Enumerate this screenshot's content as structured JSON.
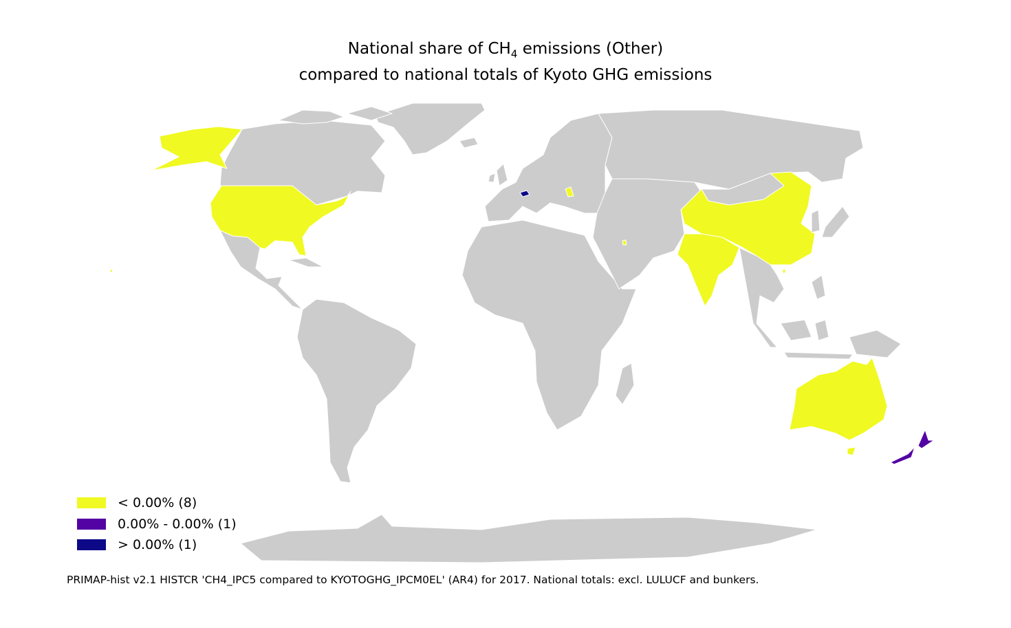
{
  "title": {
    "line1_pre": "National share of CH",
    "line1_sub": "4",
    "line1_post": " emissions (Other)",
    "line2": "compared to national totals of Kyoto GHG emissions"
  },
  "legend": {
    "items": [
      {
        "label": "< 0.00% (8)",
        "color": "#f0f921"
      },
      {
        "label": "0.00% - 0.00% (1)",
        "color": "#5302a3"
      },
      {
        "label": "> 0.00% (1)",
        "color": "#0d0887"
      }
    ]
  },
  "colors": {
    "no_data": "#cccccc",
    "border": "#ffffff",
    "low": "#f0f921",
    "mid": "#5302a3",
    "high": "#0d0887"
  },
  "highlighted_countries": {
    "low": [
      "United States",
      "China",
      "India",
      "Australia",
      "Moldova",
      "Qatar",
      "Hong Kong",
      "Tasmania"
    ],
    "mid": [
      "New Zealand"
    ],
    "high": [
      "Switzerland"
    ]
  },
  "footer": "PRIMAP-hist v2.1 HISTCR 'CH4_IPC5 compared to KYOTOGHG_IPCM0EL' (AR4) for 2017. National totals: excl. LULUCF and bunkers."
}
